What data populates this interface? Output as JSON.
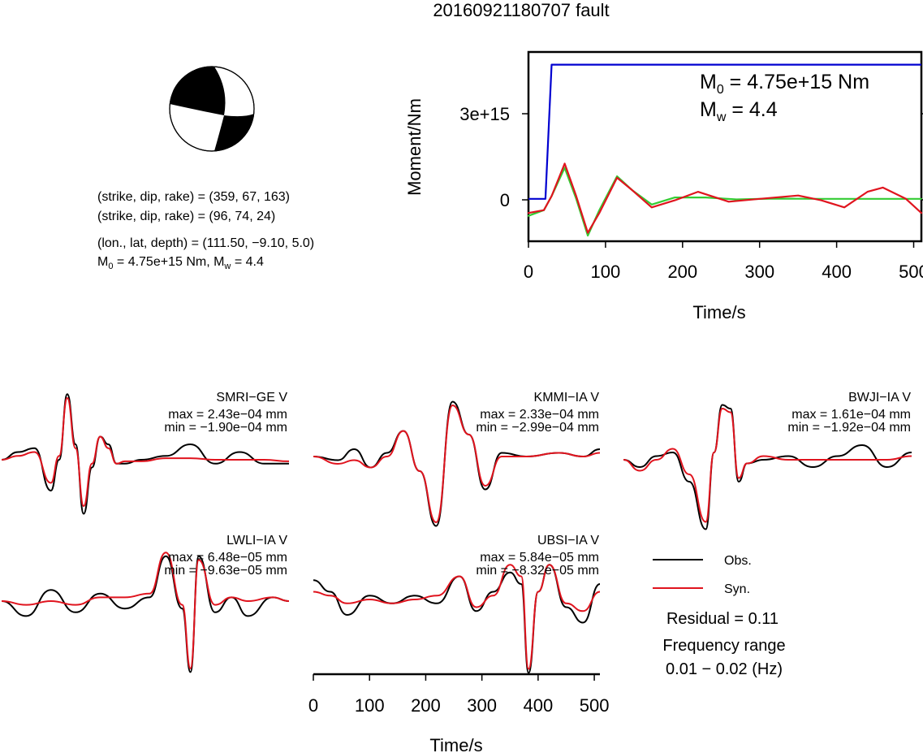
{
  "title": "20160921180707 fault",
  "mechanism": {
    "lines": [
      "(strike, dip, rake) = (359, 67, 163)",
      "(strike, dip, rake) = (96, 74, 24)",
      "(lon., lat, depth) = (111.50, −9.10, 5.0)"
    ],
    "m0_label": "M",
    "m0_sub": "0",
    "m0_value": " = 4.75e+15 Nm, M",
    "mw_sub": "w",
    "mw_value": " = 4.4"
  },
  "colors": {
    "obs": "#000000",
    "syn": "#e0141e",
    "moment": "#0000d0",
    "rate": "#33cc33"
  },
  "moment_plot": {
    "ylabel": "Moment/Nm",
    "xlabel": "Time/s",
    "x_ticks": [
      "0",
      "100",
      "200",
      "300",
      "400",
      "500"
    ],
    "y_ticks": [
      "0",
      "3e+15"
    ],
    "m0_main": "M",
    "m0_sub": "0",
    "m0_rest": " = 4.75e+15 Nm",
    "mw_main": "M",
    "mw_sub": "w",
    "mw_rest": " = 4.4"
  },
  "waveform_axis": {
    "xlabel": "Time/s",
    "x_ticks": [
      "0",
      "100",
      "200",
      "300",
      "400",
      "500"
    ]
  },
  "stations": [
    {
      "name": "SMRI−GE V",
      "max": "max = 2.43e−04 mm",
      "min": "min = −1.90e−04 mm"
    },
    {
      "name": "KMMI−IA V",
      "max": "max = 2.33e−04 mm",
      "min": "min = −2.99e−04 mm"
    },
    {
      "name": "BWJI−IA V",
      "max": "max = 1.61e−04 mm",
      "min": "min = −1.92e−04 mm"
    },
    {
      "name": "LWLI−IA V",
      "max": "max = 6.48e−05 mm",
      "min": "min = −9.63e−05 mm"
    },
    {
      "name": "UBSI−IA V",
      "max": "max = 5.84e−05 mm",
      "min": "min = −8.32e−05 mm"
    }
  ],
  "legend": {
    "obs": "Obs.",
    "syn": "Syn."
  },
  "residual": "Residual = 0.11",
  "freq_title": "Frequency range",
  "freq_value": "0.01 − 0.02 (Hz)",
  "chart_data": [
    {
      "type": "line",
      "title": "",
      "xlabel": "Time/s",
      "ylabel": "Moment/Nm",
      "xlim": [
        0,
        510
      ],
      "ylim": [
        -1500000000000000.0,
        5200000000000000.0
      ],
      "series": [
        {
          "x": [
            0,
            22,
            30,
            510
          ],
          "y": [
            0,
            0,
            4750000000000000.0,
            4750000000000000.0
          ]
        },
        {
          "x": [
            0,
            20,
            30,
            47,
            62,
            77,
            92,
            115,
            135,
            160,
            190,
            230,
            270,
            320,
            380,
            420,
            470,
            510
          ],
          "y": [
            -600000000000000.0,
            -400000000000000.0,
            100000000000000.0,
            1100000000000000.0,
            0.0,
            -1300000000000000.0,
            -400000000000000.0,
            800000000000000.0,
            300000000000000.0,
            -200000000000000.0,
            50000000000000.0,
            50000000000000.0,
            -20000000000000.0,
            10000000000000.0,
            0.0,
            0.0,
            0.0,
            0.0
          ]
        },
        {
          "x": [
            0,
            20,
            30,
            47,
            62,
            77,
            92,
            115,
            135,
            160,
            190,
            220,
            260,
            300,
            350,
            380,
            410,
            440,
            460,
            490,
            510
          ],
          "y": [
            -500000000000000.0,
            -400000000000000.0,
            100000000000000.0,
            1250000000000000.0,
            100000000000000.0,
            -1200000000000000.0,
            -500000000000000.0,
            750000000000000.0,
            300000000000000.0,
            -300000000000000.0,
            -50000000000000.0,
            250000000000000.0,
            -100000000000000.0,
            0.0,
            120000000000000.0,
            -50000000000000.0,
            -300000000000000.0,
            250000000000000.0,
            400000000000000.0,
            0.0,
            -500000000000000.0
          ]
        }
      ]
    },
    {
      "type": "line",
      "station": "SMRI−GE V",
      "ylim": [
        -1,
        1
      ],
      "series": [
        {
          "name": "Obs.",
          "x": [
            0,
            20,
            40,
            60,
            70,
            80,
            90,
            100,
            110,
            120,
            130,
            140,
            150,
            170,
            200,
            230,
            260,
            290,
            320,
            350
          ],
          "y": [
            0.0,
            0.1,
            0.15,
            -0.4,
            0.0,
            0.85,
            0.2,
            -0.7,
            -0.1,
            0.3,
            0.2,
            -0.05,
            -0.05,
            0.0,
            0.05,
            0.2,
            -0.05,
            0.1,
            -0.05,
            -0.05
          ]
        },
        {
          "name": "Syn.",
          "x": [
            0,
            20,
            40,
            60,
            70,
            80,
            90,
            100,
            110,
            120,
            130,
            140,
            150,
            170,
            200,
            230,
            260,
            290,
            320,
            350
          ],
          "y": [
            0.0,
            0.05,
            0.1,
            -0.3,
            0.05,
            0.8,
            0.15,
            -0.6,
            -0.05,
            0.3,
            0.15,
            -0.05,
            -0.02,
            -0.02,
            0.02,
            0.02,
            0.0,
            0.0,
            0.0,
            -0.02
          ]
        }
      ]
    },
    {
      "type": "line",
      "station": "KMMI−IA V",
      "ylim": [
        -1,
        1
      ],
      "series": [
        {
          "name": "Obs.",
          "x": [
            0,
            30,
            50,
            70,
            90,
            110,
            130,
            150,
            170,
            190,
            210,
            230,
            260,
            300,
            330,
            350
          ],
          "y": [
            0.0,
            -0.05,
            0.1,
            -0.15,
            0.05,
            0.35,
            -0.2,
            -0.95,
            0.75,
            0.3,
            -0.45,
            0.05,
            0.0,
            0.05,
            0.0,
            0.1
          ]
        },
        {
          "name": "Syn.",
          "x": [
            0,
            30,
            50,
            70,
            90,
            110,
            130,
            150,
            170,
            190,
            210,
            230,
            260,
            300,
            330,
            350
          ],
          "y": [
            0.0,
            -0.1,
            -0.05,
            -0.15,
            0.0,
            0.35,
            -0.2,
            -0.9,
            0.7,
            0.3,
            -0.4,
            0.0,
            0.0,
            0.05,
            0.0,
            0.05
          ]
        }
      ]
    },
    {
      "type": "line",
      "station": "BWJI−IA V",
      "ylim": [
        -1,
        1
      ],
      "series": [
        {
          "name": "Obs.",
          "x": [
            0,
            20,
            40,
            60,
            80,
            100,
            110,
            120,
            130,
            140,
            150,
            170,
            200,
            230,
            260,
            290,
            320,
            350
          ],
          "y": [
            0.0,
            -0.1,
            0.05,
            0.1,
            -0.3,
            -0.95,
            0.1,
            0.75,
            0.7,
            -0.3,
            -0.05,
            0.0,
            0.05,
            -0.1,
            0.05,
            0.2,
            -0.1,
            0.1
          ]
        },
        {
          "name": "Syn.",
          "x": [
            0,
            20,
            40,
            60,
            80,
            100,
            110,
            120,
            130,
            140,
            150,
            170,
            200,
            230,
            260,
            290,
            320,
            350
          ],
          "y": [
            0.0,
            -0.15,
            0.0,
            0.15,
            -0.2,
            -0.85,
            0.1,
            0.7,
            0.65,
            -0.25,
            -0.05,
            0.05,
            0.0,
            0.0,
            0.0,
            0.0,
            0.0,
            0.05
          ]
        }
      ]
    },
    {
      "type": "line",
      "station": "LWLI−IA V",
      "ylim": [
        -1,
        1
      ],
      "series": [
        {
          "name": "Obs.",
          "x": [
            0,
            30,
            60,
            90,
            120,
            150,
            180,
            200,
            220,
            230,
            240,
            260,
            280,
            300,
            330,
            350
          ],
          "y": [
            0.0,
            -0.2,
            0.15,
            -0.15,
            0.1,
            -0.1,
            0.05,
            0.6,
            -0.1,
            -0.95,
            0.6,
            -0.15,
            0.05,
            -0.2,
            0.05,
            0.0
          ]
        },
        {
          "name": "Syn.",
          "x": [
            0,
            30,
            60,
            90,
            120,
            150,
            180,
            200,
            220,
            230,
            240,
            260,
            280,
            300,
            330,
            350
          ],
          "y": [
            0.0,
            -0.05,
            0.0,
            -0.05,
            0.05,
            0.05,
            0.1,
            0.65,
            -0.05,
            -0.9,
            0.55,
            -0.05,
            0.05,
            0.0,
            0.05,
            0.0
          ]
        }
      ]
    },
    {
      "type": "line",
      "station": "UBSI−IA V",
      "ylim": [
        -1,
        1
      ],
      "series": [
        {
          "name": "Obs.",
          "x": [
            0,
            30,
            60,
            100,
            140,
            180,
            220,
            260,
            290,
            320,
            350,
            370,
            383,
            400,
            420,
            450,
            480,
            510
          ],
          "y": [
            0.25,
            0.1,
            -0.2,
            0.05,
            -0.05,
            0.05,
            -0.05,
            0.3,
            -0.15,
            0.1,
            0.35,
            0.2,
            -0.95,
            0.1,
            0.45,
            -0.1,
            -0.3,
            0.2
          ]
        },
        {
          "name": "Syn.",
          "x": [
            0,
            30,
            60,
            100,
            140,
            180,
            220,
            260,
            290,
            320,
            350,
            370,
            383,
            400,
            420,
            450,
            480,
            510
          ],
          "y": [
            0.1,
            0.05,
            -0.05,
            0.0,
            -0.05,
            0.0,
            0.05,
            0.3,
            -0.1,
            0.05,
            0.45,
            0.3,
            -0.9,
            0.1,
            0.45,
            -0.05,
            -0.15,
            0.1
          ]
        }
      ]
    }
  ]
}
